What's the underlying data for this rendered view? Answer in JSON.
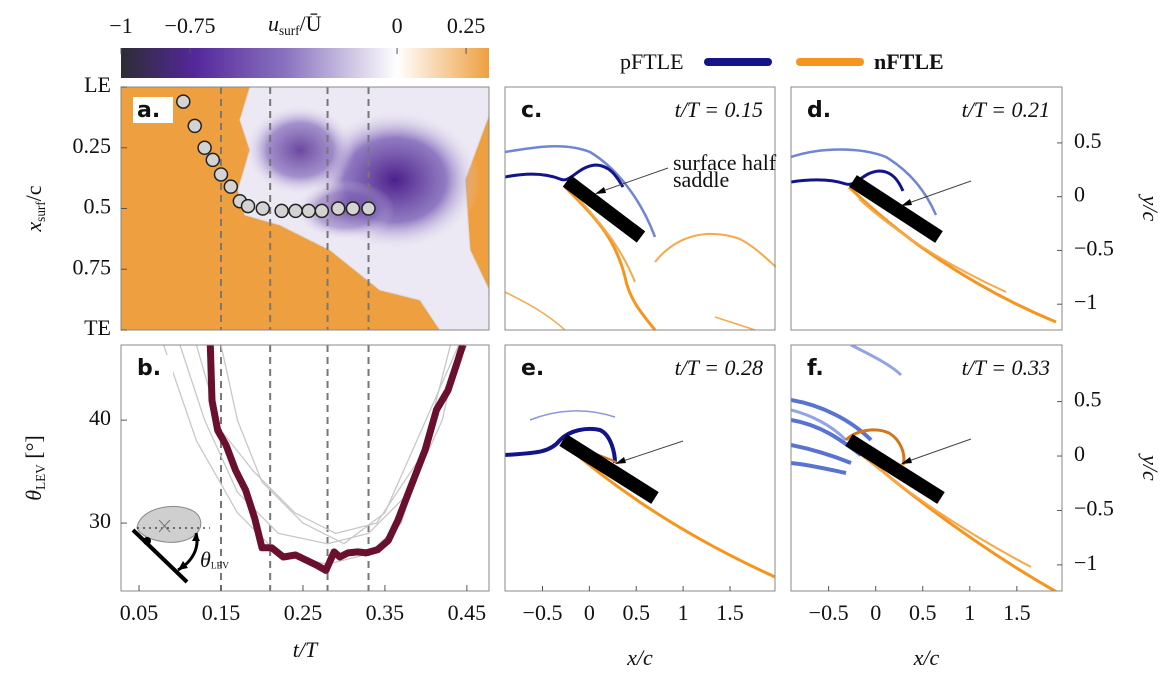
{
  "chart_data": [
    {
      "type": "heatmap",
      "panel_label": "a.",
      "xlim": [
        0.028,
        0.477
      ],
      "ylim": [
        0,
        1
      ],
      "y_inverted": true,
      "yticks": [
        {
          "value": 0,
          "label": "LE"
        },
        0.25,
        0.5,
        0.75,
        {
          "value": 1,
          "label": "TE"
        }
      ],
      "ylabel": {
        "base": "x",
        "sub": "surf",
        "rest": "/c"
      },
      "colorbar": {
        "label": {
          "base": "u",
          "sub": "surf",
          "rest": "/Ū"
        },
        "lim": [
          -1,
          0.333
        ],
        "ticks": [
          {
            "value": -1,
            "label": "−1"
          },
          {
            "value": -0.75,
            "label": "−0.75"
          },
          0,
          0.25
        ]
      },
      "x": [
        0.104,
        0.118,
        0.13,
        0.14,
        0.15,
        0.162,
        0.173,
        0.183,
        0.201,
        0.224,
        0.241,
        0.257,
        0.273,
        0.293,
        0.311,
        0.33
      ],
      "values": [
        0.06,
        0.16,
        0.25,
        0.3,
        0.36,
        0.41,
        0.47,
        0.49,
        0.5,
        0.51,
        0.51,
        0.51,
        0.51,
        0.5,
        0.5,
        0.5
      ],
      "point_color": "#d3d3d3",
      "vlines": [
        0.15,
        0.21,
        0.28,
        0.33
      ]
    },
    {
      "type": "line",
      "panel_label": "b.",
      "xlim": [
        0.028,
        0.477
      ],
      "ylim": [
        23.4,
        47.3
      ],
      "xticks": [
        0.05,
        0.15,
        0.25,
        0.35,
        0.45
      ],
      "yticks": [
        30,
        40
      ],
      "xlabel": "t/T",
      "ylabel": {
        "base": "θ",
        "sub": "LEV",
        "rest": " [°]"
      },
      "inset_label": {
        "base": "θ",
        "sub": "LEV"
      },
      "vlines": [
        0.15,
        0.21,
        0.28,
        0.33
      ],
      "series": [
        {
          "color": "#c8c8c8",
          "x": [
            0.1,
            0.13,
            0.17,
            0.22,
            0.28,
            0.33,
            0.38,
            0.42,
            0.44
          ],
          "values": [
            47.3,
            40,
            33,
            29,
            28,
            29,
            33,
            40,
            47.3
          ]
        },
        {
          "color": "#c8c8c8",
          "x": [
            0.08,
            0.12,
            0.17,
            0.22,
            0.28,
            0.33,
            0.37,
            0.4,
            0.43
          ],
          "values": [
            47.3,
            38,
            31,
            27,
            26,
            27,
            30,
            38,
            47.3
          ]
        },
        {
          "color": "#c8c8c8",
          "x": [
            0.12,
            0.15,
            0.19,
            0.24,
            0.29,
            0.34,
            0.39,
            0.43,
            0.45
          ],
          "values": [
            47.3,
            39,
            35,
            31,
            29,
            30,
            36,
            44,
            47.3
          ]
        },
        {
          "color": "#c8c8c8",
          "x": [
            0.15,
            0.17,
            0.2,
            0.25,
            0.3,
            0.35,
            0.4,
            0.44
          ],
          "values": [
            47.3,
            40,
            34,
            30,
            28,
            31,
            40,
            47.3
          ]
        },
        {
          "color": "#6b0f2e",
          "x": [
            0.137,
            0.139,
            0.146,
            0.156,
            0.168,
            0.18,
            0.191,
            0.2,
            0.212,
            0.226,
            0.241,
            0.254,
            0.267,
            0.278,
            0.288,
            0.295,
            0.305,
            0.317,
            0.327,
            0.341,
            0.354,
            0.366,
            0.38,
            0.399,
            0.413,
            0.427,
            0.439,
            0.445
          ],
          "values": [
            47.3,
            41.9,
            39.0,
            37.6,
            35.1,
            33.2,
            30.5,
            27.6,
            27.6,
            26.7,
            26.9,
            26.4,
            25.9,
            25.4,
            27.2,
            26.7,
            27.1,
            27.2,
            27.1,
            27.4,
            28.3,
            30.3,
            33.2,
            37.1,
            41.0,
            42.9,
            45.8,
            47.3
          ]
        }
      ]
    },
    {
      "type": "flow-field",
      "panel_label": "c.",
      "title": "t/T = 0.15",
      "xlim": [
        -0.9,
        1.98
      ],
      "ylim": [
        -1.24,
        1.02
      ],
      "annotation": [
        "surface half",
        "saddle"
      ],
      "series": [
        {
          "name": "pFTLE",
          "color": "#14148a"
        },
        {
          "name": "nFTLE",
          "color": "#f7941d"
        }
      ]
    },
    {
      "type": "flow-field",
      "panel_label": "d.",
      "title": "t/T = 0.21",
      "xlim": [
        -0.9,
        1.98
      ],
      "ylim": [
        -1.24,
        1.02
      ],
      "yticks": [
        0.5,
        0,
        {
          "value": -0.5,
          "label": "−0.5"
        },
        {
          "value": -1,
          "label": "−1"
        }
      ],
      "ylabel": "y/c"
    },
    {
      "type": "flow-field",
      "panel_label": "e.",
      "title": "t/T = 0.28",
      "xlim": [
        -0.9,
        1.98
      ],
      "ylim": [
        -1.24,
        1.02
      ],
      "xticks": [
        {
          "value": -0.5,
          "label": "−0.5"
        },
        0,
        0.5,
        1,
        1.5
      ],
      "xlabel": "x/c"
    },
    {
      "type": "flow-field",
      "panel_label": "f.",
      "title": "t/T = 0.33",
      "xlim": [
        -0.9,
        1.98
      ],
      "ylim": [
        -1.24,
        1.02
      ],
      "xticks": [
        {
          "value": -0.5,
          "label": "−0.5"
        },
        0,
        0.5,
        1,
        1.5
      ],
      "xlabel": "x/c",
      "yticks": [
        0.5,
        0,
        {
          "value": -0.5,
          "label": "−0.5"
        },
        {
          "value": -1,
          "label": "−1"
        }
      ],
      "ylabel": "y/c"
    }
  ]
}
